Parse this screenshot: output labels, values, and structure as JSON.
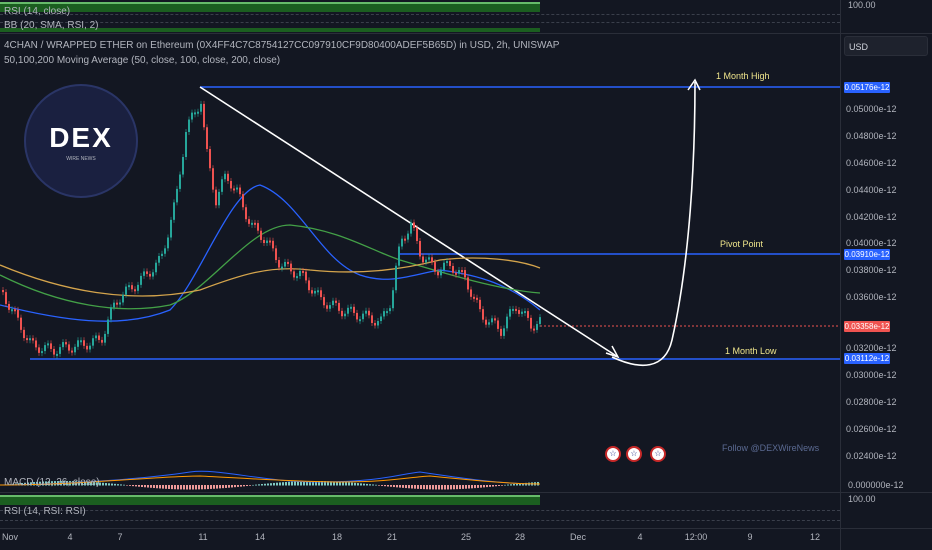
{
  "indicators": {
    "rsi_top": "RSI (14, close)",
    "bb_top": "BB (20, SMA, RSI, 2)",
    "title": "4CHAN / WRAPPED ETHER on Ethereum (0X4FF4C7C8754127CC097910CF9D80400ADEF5B65D) in USD, 2h, UNISWAP",
    "ma": "50,100,200 Moving Average (50, close, 100, close, 200, close)",
    "macd": "MACD (12, 26, close)",
    "rsi_bottom": "RSI (14, RSI: RSI)"
  },
  "top_scale": "100.00",
  "bottom_scale": "100.00",
  "macd_scale": "0.000000e-12",
  "currency": "USD",
  "price_axis": [
    "0.05000e-12",
    "0.04800e-12",
    "0.04600e-12",
    "0.04400e-12",
    "0.04200e-12",
    "0.04000e-12",
    "0.03800e-12",
    "0.03600e-12",
    "0.03200e-12",
    "0.03000e-12",
    "0.02800e-12",
    "0.02600e-12",
    "0.02400e-12"
  ],
  "price_tags": {
    "high": "0.05176e-12",
    "pivot": "0.03910e-12",
    "current": "0.03358e-12",
    "low": "0.03112e-12"
  },
  "levels": {
    "high_label": "1 Month High",
    "pivot_label": "Pivot Point",
    "low_label": "1 Month Low"
  },
  "x_axis": [
    "Nov",
    "4",
    "7",
    "11",
    "14",
    "18",
    "21",
    "25",
    "28",
    "Dec",
    "4",
    "12:00",
    "9",
    "12"
  ],
  "logo": {
    "text": "DEX",
    "sub": "WIRE NEWS"
  },
  "follow": "Follow @DEXWireNews",
  "colors": {
    "bg": "#131722",
    "up": "#26a69a",
    "down": "#ef5350",
    "level": "#2962ff",
    "accent_green": "#43a047"
  }
}
